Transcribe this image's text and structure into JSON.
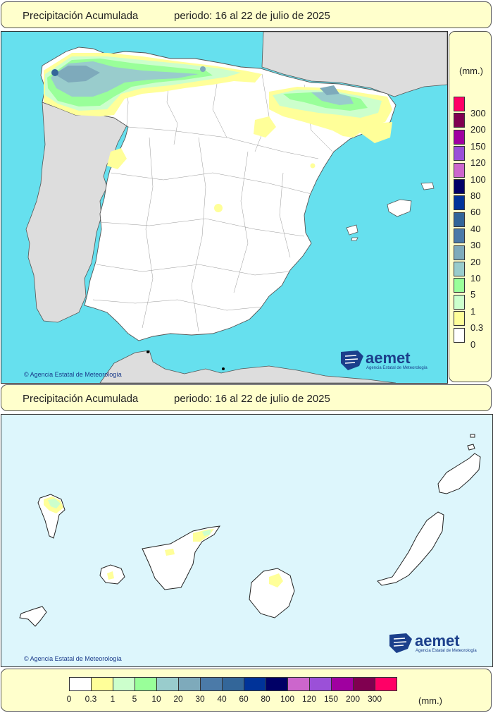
{
  "header_top": {
    "title": "Precipitación Acumulada",
    "period": "periodo: 16 al 22 de julio de 2025"
  },
  "header_bottom": {
    "title": "Precipitación Acumulada",
    "period": "periodo: 16 al 22 de julio de 2025"
  },
  "legend": {
    "units": "(mm.)",
    "items": [
      {
        "label": "300",
        "color": "#ff0066"
      },
      {
        "label": "200",
        "color": "#800050"
      },
      {
        "label": "150",
        "color": "#a000a0"
      },
      {
        "label": "120",
        "color": "#9b50d8"
      },
      {
        "label": "100",
        "color": "#cc66cc"
      },
      {
        "label": "80",
        "color": "#000066"
      },
      {
        "label": "60",
        "color": "#003399"
      },
      {
        "label": "40",
        "color": "#336699"
      },
      {
        "label": "30",
        "color": "#4b7aa8"
      },
      {
        "label": "20",
        "color": "#7eaabb"
      },
      {
        "label": "10",
        "color": "#99cccc"
      },
      {
        "label": "5",
        "color": "#99ff99"
      },
      {
        "label": "1",
        "color": "#ccffcc"
      },
      {
        "label": "0.3",
        "color": "#ffff99"
      },
      {
        "label": "0",
        "color": "#ffffff"
      }
    ]
  },
  "copyright": "Agencia Estatal de Meteorología",
  "logo": {
    "name": "aemet",
    "tagline": "Agencia Estatal de Meteorología"
  },
  "colors": {
    "sea": "#66e0ee",
    "sea_canarias": "#ddf6fc",
    "land": "#ffffff",
    "foreign_land": "#dddddd",
    "panel": "#ffffcc"
  }
}
